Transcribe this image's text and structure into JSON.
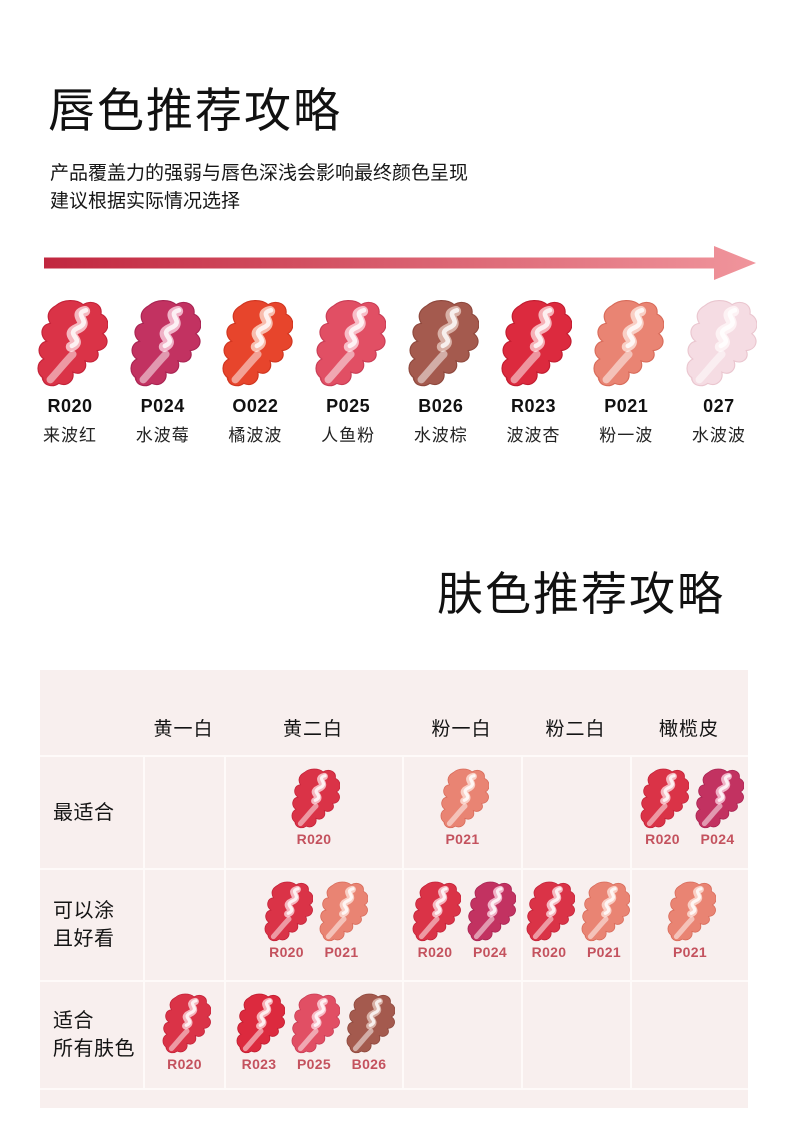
{
  "lip_section": {
    "title": "唇色推荐攻略",
    "subtitle_lines": [
      "产品覆盖力的强弱与唇色深浅会影响最终颜色呈现",
      "建议根据实际情况选择"
    ],
    "arrow": {
      "color_from": "#c1273f",
      "color_to": "#f0959c"
    },
    "shades": [
      {
        "code": "R020",
        "name": "来波红",
        "color": "#da3347",
        "edge": "#c32238",
        "tint": "#f7bfc6"
      },
      {
        "code": "P024",
        "name": "水波莓",
        "color": "#c23261",
        "edge": "#a82452",
        "tint": "#f2b9cc"
      },
      {
        "code": "O022",
        "name": "橘波波",
        "color": "#e7452c",
        "edge": "#cf3520",
        "tint": "#f9c4b4"
      },
      {
        "code": "P025",
        "name": "人鱼粉",
        "color": "#e14f64",
        "edge": "#c93d55",
        "tint": "#f9c3cc"
      },
      {
        "code": "B026",
        "name": "水波棕",
        "color": "#a45a4e",
        "edge": "#8e483d",
        "tint": "#dbb5ab"
      },
      {
        "code": "R023",
        "name": "波波杏",
        "color": "#dc2a3e",
        "edge": "#c01c2f",
        "tint": "#f7b7bd"
      },
      {
        "code": "P021",
        "name": "粉一波",
        "color": "#e98473",
        "edge": "#d86b5a",
        "tint": "#fad3c9"
      },
      {
        "code": "027",
        "name": "水波波",
        "color": "#f5dce3",
        "edge": "#eac6cf",
        "tint": "#fdf2f4"
      }
    ]
  },
  "skin_section": {
    "title": "肤色推荐攻略",
    "table": {
      "bg": "#f8efee",
      "grid_line": "#fefaf9",
      "code_color": "#c4525e",
      "columns": [
        "黄一白",
        "黄二白",
        "粉一白",
        "粉二白",
        "橄榄皮"
      ],
      "rows": [
        {
          "label_lines": [
            "最适合"
          ],
          "cells": [
            [],
            [
              "R020"
            ],
            [
              "P021"
            ],
            [],
            [
              "R020",
              "P024"
            ]
          ]
        },
        {
          "label_lines": [
            "可以涂",
            "且好看"
          ],
          "cells": [
            [],
            [
              "R020",
              "P021"
            ],
            [
              "R020",
              "P024"
            ],
            [
              "R020",
              "P021"
            ],
            [
              "P021"
            ]
          ]
        },
        {
          "label_lines": [
            "适合",
            "所有肤色"
          ],
          "cells": [
            [
              "R020"
            ],
            [
              "R023",
              "P025",
              "B026"
            ],
            [],
            [],
            []
          ]
        }
      ]
    }
  }
}
